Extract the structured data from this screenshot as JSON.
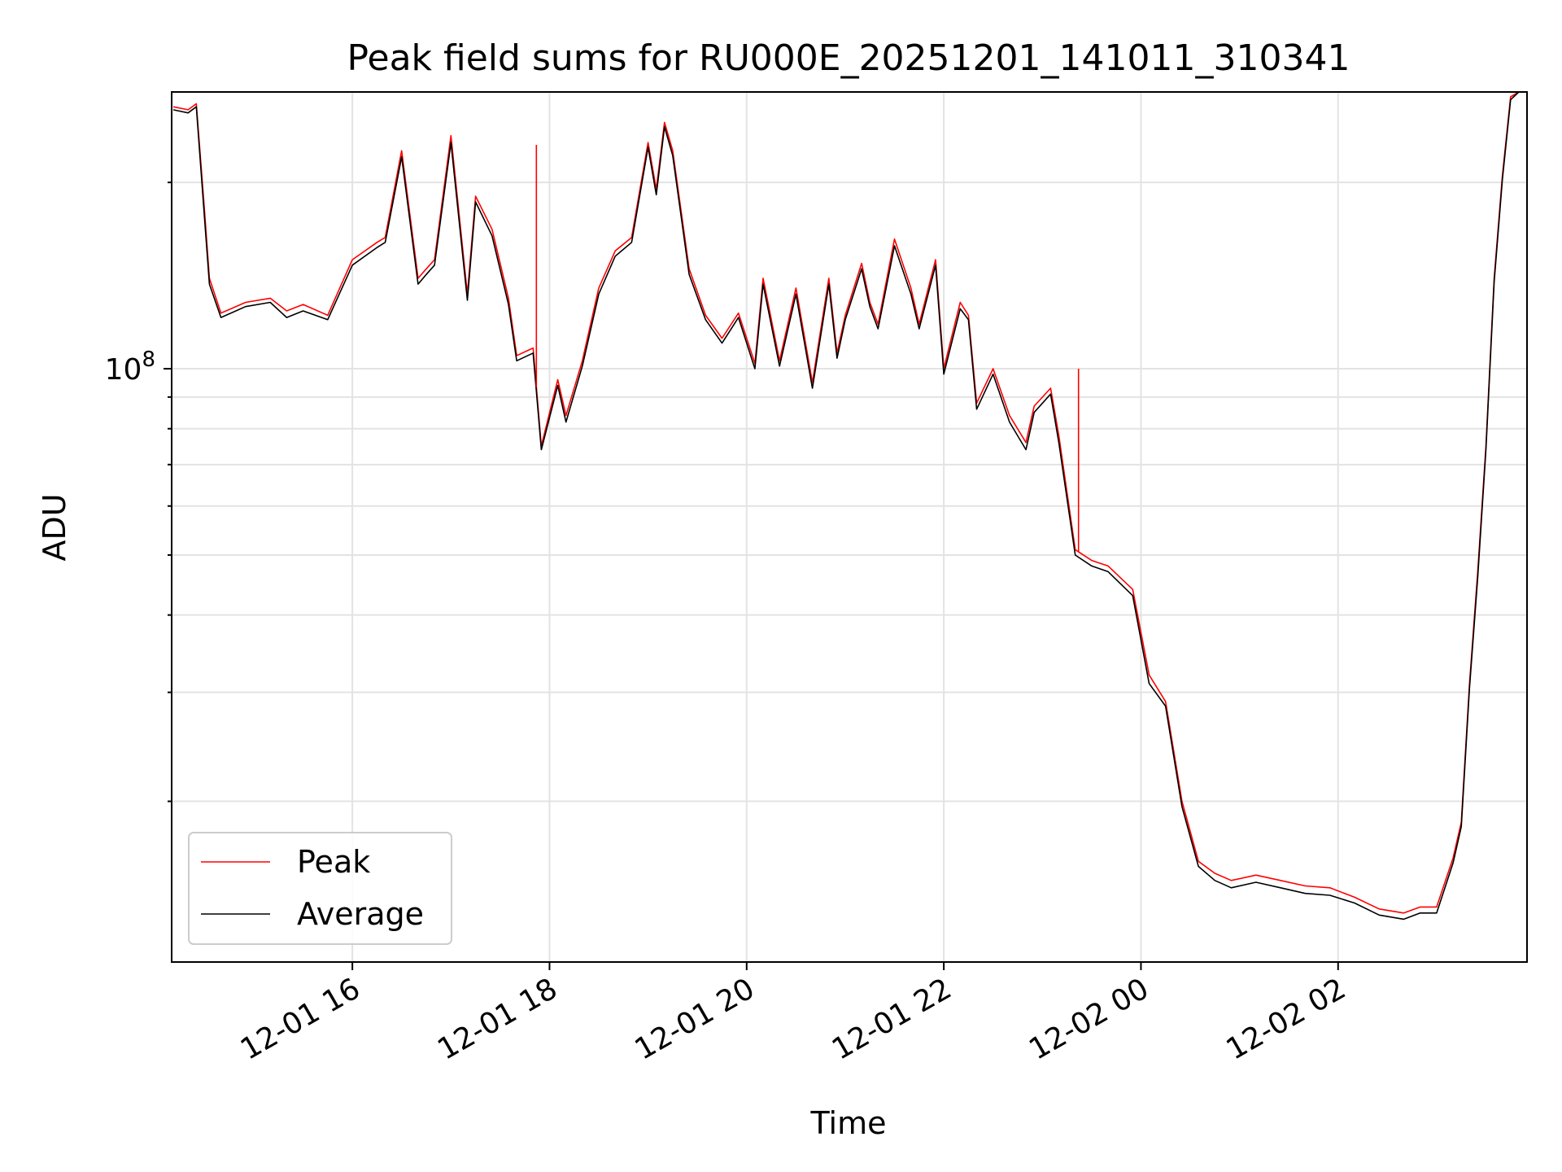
{
  "chart_data": {
    "type": "line",
    "title": "Peak field sums for RU000E_20251201_141011_310341",
    "xlabel": "Time",
    "ylabel": "ADU",
    "yscale": "log",
    "xlim": [
      "2025-12-01 14:10",
      "2025-12-02 03:55"
    ],
    "ylim": [
      11000000,
      280000000
    ],
    "grid": true,
    "legend_position": "lower-left",
    "x_tick_labels": [
      "12-01 16",
      "12-01 18",
      "12-01 20",
      "12-01 22",
      "12-02 00",
      "12-02 02"
    ],
    "x_ticks": [
      "2025-12-01 16:00",
      "2025-12-01 18:00",
      "2025-12-01 20:00",
      "2025-12-01 22:00",
      "2025-12-02 00:00",
      "2025-12-02 02:00"
    ],
    "y_tick_labels": [
      {
        "base": "10",
        "exp": "8",
        "value": 100000000
      }
    ],
    "x": [
      "2025-12-01 14:11",
      "2025-12-01 14:20",
      "2025-12-01 14:25",
      "2025-12-01 14:30",
      "2025-12-01 14:33",
      "2025-12-01 14:40",
      "2025-12-01 14:55",
      "2025-12-01 15:10",
      "2025-12-01 15:20",
      "2025-12-01 15:30",
      "2025-12-01 15:45",
      "2025-12-01 16:00",
      "2025-12-01 16:15",
      "2025-12-01 16:20",
      "2025-12-01 16:30",
      "2025-12-01 16:40",
      "2025-12-01 16:45",
      "2025-12-01 16:50",
      "2025-12-01 17:00",
      "2025-12-01 17:10",
      "2025-12-01 17:15",
      "2025-12-01 17:25",
      "2025-12-01 17:35",
      "2025-12-01 17:40",
      "2025-12-01 17:50",
      "2025-12-01 17:55",
      "2025-12-01 18:05",
      "2025-12-01 18:10",
      "2025-12-01 18:20",
      "2025-12-01 18:30",
      "2025-12-01 18:40",
      "2025-12-01 18:50",
      "2025-12-01 19:00",
      "2025-12-01 19:05",
      "2025-12-01 19:10",
      "2025-12-01 19:15",
      "2025-12-01 19:25",
      "2025-12-01 19:35",
      "2025-12-01 19:45",
      "2025-12-01 19:55",
      "2025-12-01 20:05",
      "2025-12-01 20:10",
      "2025-12-01 20:20",
      "2025-12-01 20:30",
      "2025-12-01 20:40",
      "2025-12-01 20:50",
      "2025-12-01 20:55",
      "2025-12-01 21:00",
      "2025-12-01 21:10",
      "2025-12-01 21:15",
      "2025-12-01 21:20",
      "2025-12-01 21:30",
      "2025-12-01 21:40",
      "2025-12-01 21:45",
      "2025-12-01 21:55",
      "2025-12-01 22:00",
      "2025-12-01 22:10",
      "2025-12-01 22:15",
      "2025-12-01 22:20",
      "2025-12-01 22:30",
      "2025-12-01 22:40",
      "2025-12-01 22:50",
      "2025-12-01 22:55",
      "2025-12-01 23:05",
      "2025-12-01 23:10",
      "2025-12-01 23:20",
      "2025-12-01 23:30",
      "2025-12-01 23:40",
      "2025-12-01 23:55",
      "2025-12-02 00:05",
      "2025-12-02 00:15",
      "2025-12-02 00:25",
      "2025-12-02 00:35",
      "2025-12-02 00:45",
      "2025-12-02 00:55",
      "2025-12-02 01:10",
      "2025-12-02 01:25",
      "2025-12-02 01:40",
      "2025-12-02 01:55",
      "2025-12-02 02:10",
      "2025-12-02 02:25",
      "2025-12-02 02:40",
      "2025-12-02 02:50",
      "2025-12-02 03:00",
      "2025-12-02 03:10",
      "2025-12-02 03:15",
      "2025-12-02 03:20",
      "2025-12-02 03:25",
      "2025-12-02 03:30",
      "2025-12-02 03:35",
      "2025-12-02 03:40",
      "2025-12-02 03:45",
      "2025-12-02 03:50"
    ],
    "series": [
      {
        "name": "Peak",
        "color": "#ff0000",
        "values": [
          265000000,
          262000000,
          268000000,
          180000000,
          140000000,
          123000000,
          128000000,
          130000000,
          124000000,
          127000000,
          122000000,
          150000000,
          160000000,
          163000000,
          225000000,
          140000000,
          145000000,
          150000000,
          238000000,
          132000000,
          190000000,
          168000000,
          130000000,
          105000000,
          108000000,
          75000000,
          96000000,
          84000000,
          103000000,
          135000000,
          155000000,
          163000000,
          232000000,
          195000000,
          250000000,
          225000000,
          145000000,
          122000000,
          112000000,
          123000000,
          102000000,
          140000000,
          103000000,
          135000000,
          95000000,
          140000000,
          106000000,
          122000000,
          148000000,
          128000000,
          118000000,
          162000000,
          135000000,
          118000000,
          150000000,
          100000000,
          128000000,
          122000000,
          88000000,
          100000000,
          84000000,
          76000000,
          87000000,
          93000000,
          78000000,
          51000000,
          49000000,
          48000000,
          44000000,
          32000000,
          29000000,
          20000000,
          16000000,
          15300000,
          14900000,
          15200000,
          14900000,
          14600000,
          14500000,
          14000000,
          13400000,
          13200000,
          13500000,
          13500000,
          16200000,
          18500000,
          31000000,
          47000000,
          75000000,
          140000000,
          205000000,
          275000000,
          290000000
        ]
      },
      {
        "name": "Average",
        "color": "#000000",
        "values": [
          262000000,
          259000000,
          265000000,
          175000000,
          137000000,
          121000000,
          126000000,
          128000000,
          121000000,
          124000000,
          120000000,
          147000000,
          157000000,
          160000000,
          220000000,
          137000000,
          142000000,
          147000000,
          232000000,
          129000000,
          186000000,
          164000000,
          127000000,
          103000000,
          106000000,
          74000000,
          94000000,
          82000000,
          101000000,
          132000000,
          152000000,
          160000000,
          228000000,
          191000000,
          246000000,
          221000000,
          142000000,
          120000000,
          110000000,
          121000000,
          100000000,
          137000000,
          101000000,
          132000000,
          93000000,
          137000000,
          104000000,
          120000000,
          145000000,
          126000000,
          116000000,
          158000000,
          132000000,
          116000000,
          147000000,
          98000000,
          125000000,
          120000000,
          86000000,
          98000000,
          82000000,
          74000000,
          85000000,
          91000000,
          76000000,
          50000000,
          48000000,
          47000000,
          43000000,
          31000000,
          28500000,
          19600000,
          15700000,
          14900000,
          14500000,
          14800000,
          14500000,
          14200000,
          14100000,
          13700000,
          13100000,
          12900000,
          13200000,
          13200000,
          15900000,
          18200000,
          30500000,
          46000000,
          74000000,
          138000000,
          202000000,
          272000000,
          288000000
        ]
      }
    ],
    "spikes": [
      {
        "series": "Peak",
        "x": "2025-12-01 17:52",
        "value": 230000000
      },
      {
        "series": "Peak",
        "x": "2025-12-01 23:22",
        "value": 100000000
      }
    ]
  }
}
